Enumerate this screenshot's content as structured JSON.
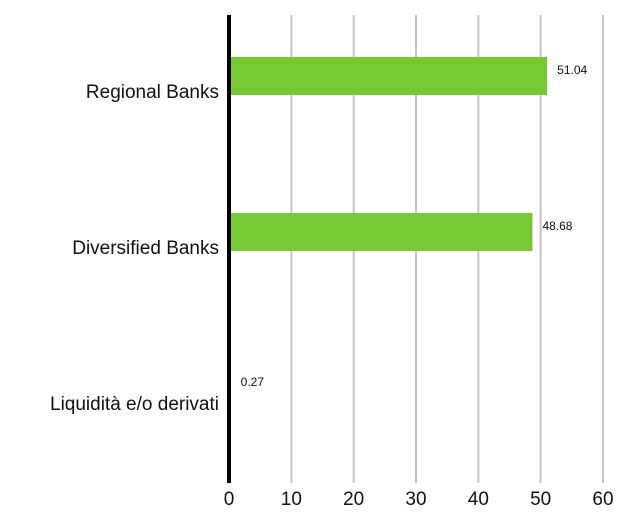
{
  "chart_data": {
    "type": "bar",
    "orientation": "horizontal",
    "categories": [
      "Regional Banks",
      "Diversified Banks",
      "Liquidità e/o derivati"
    ],
    "values": [
      51.04,
      48.68,
      0.27
    ],
    "data_labels": [
      "51.04",
      "48.68",
      "0.27"
    ],
    "xticks": [
      "0",
      "10",
      "20",
      "30",
      "40",
      "50",
      "60"
    ],
    "xlim": [
      0,
      60
    ],
    "grid": "vertical",
    "legend": "none",
    "bar_color": "#76c834",
    "grid_color": "#c4c4c4",
    "axis_color": "#000000"
  }
}
